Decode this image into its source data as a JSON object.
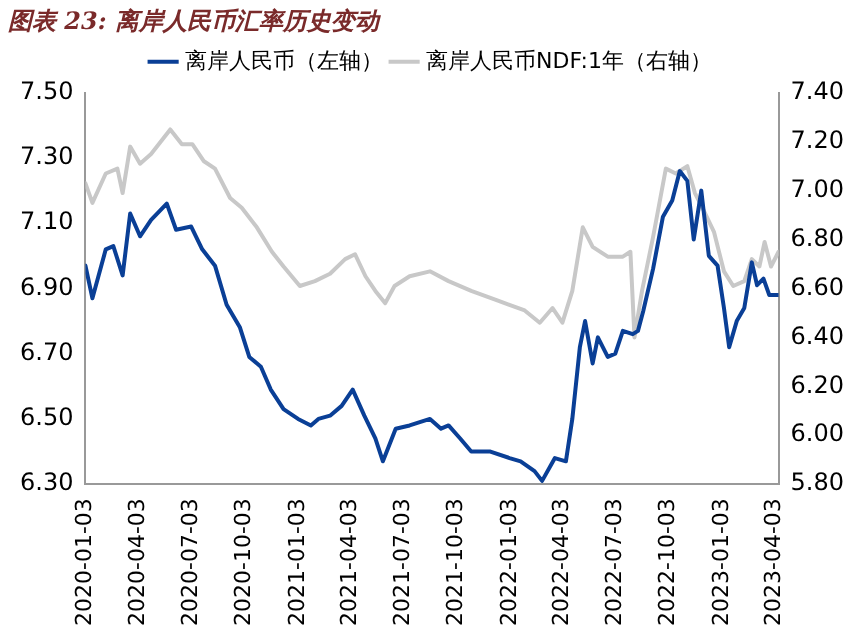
{
  "chart_data": {
    "type": "line",
    "title": "图表 23: 离岸人民币汇率历史变动",
    "legend": "top",
    "grid": false,
    "marker": "none",
    "line_style": "solid",
    "xlim": [
      "2020-01-03",
      "2023-04-10"
    ],
    "xticks": [
      "2020-01-03",
      "2020-04-03",
      "2020-07-03",
      "2020-10-03",
      "2021-01-03",
      "2021-04-03",
      "2021-07-03",
      "2021-10-03",
      "2022-01-03",
      "2022-04-03",
      "2022-07-03",
      "2022-10-03",
      "2023-01-03",
      "2023-04-03"
    ],
    "ylim": [
      6.3,
      7.5
    ],
    "yticks": [
      {
        "value": 6.3,
        "label": "6.30"
      },
      {
        "value": 6.5,
        "label": "6.50"
      },
      {
        "value": 6.7,
        "label": "6.70"
      },
      {
        "value": 6.9,
        "label": "6.90"
      },
      {
        "value": 7.1,
        "label": "7.10"
      },
      {
        "value": 7.3,
        "label": "7.30"
      },
      {
        "value": 7.5,
        "label": "7.50"
      }
    ],
    "y2lim": [
      5.8,
      7.4
    ],
    "y2ticks": [
      {
        "value": 5.8,
        "label": "5.80"
      },
      {
        "value": 6.0,
        "label": "6.00"
      },
      {
        "value": 6.2,
        "label": "6.20"
      },
      {
        "value": 6.4,
        "label": "6.40"
      },
      {
        "value": 6.6,
        "label": "6.60"
      },
      {
        "value": 6.8,
        "label": "6.80"
      },
      {
        "value": 7.0,
        "label": "7.00"
      },
      {
        "value": 7.2,
        "label": "7.20"
      },
      {
        "value": 7.4,
        "label": "7.40"
      }
    ],
    "series": [
      {
        "name": "离岸人民币（左轴）",
        "color": "#0a3f96",
        "axis": "y",
        "x": [
          "2020-01-03",
          "2020-01-15",
          "2020-02-07",
          "2020-02-20",
          "2020-03-07",
          "2020-03-20",
          "2020-04-06",
          "2020-04-25",
          "2020-05-22",
          "2020-06-07",
          "2020-07-03",
          "2020-07-22",
          "2020-08-13",
          "2020-09-02",
          "2020-09-25",
          "2020-10-11",
          "2020-10-31",
          "2020-11-17",
          "2020-12-09",
          "2021-01-03",
          "2021-01-25",
          "2021-02-07",
          "2021-02-27",
          "2021-03-19",
          "2021-04-07",
          "2021-04-27",
          "2021-05-16",
          "2021-05-29",
          "2021-06-20",
          "2021-07-14",
          "2021-08-18",
          "2021-09-06",
          "2021-09-19",
          "2021-10-09",
          "2021-10-28",
          "2021-11-30",
          "2022-01-02",
          "2022-01-21",
          "2022-02-14",
          "2022-02-27",
          "2022-03-21",
          "2022-04-09",
          "2022-04-20",
          "2022-05-03",
          "2022-05-12",
          "2022-05-25",
          "2022-06-03",
          "2022-06-20",
          "2022-07-03",
          "2022-07-16",
          "2022-08-02",
          "2022-08-11",
          "2022-08-20",
          "2022-09-06",
          "2022-09-23",
          "2022-10-09",
          "2022-10-22",
          "2022-11-04",
          "2022-11-15",
          "2022-11-28",
          "2022-12-11",
          "2022-12-26",
          "2023-01-06",
          "2023-01-15",
          "2023-01-28",
          "2023-02-10",
          "2023-02-23",
          "2023-03-04",
          "2023-03-15",
          "2023-03-25",
          "2023-04-10"
        ],
        "values": [
          6.97,
          6.87,
          7.02,
          7.03,
          6.94,
          7.13,
          7.06,
          7.11,
          7.16,
          7.08,
          7.09,
          7.02,
          6.97,
          6.85,
          6.78,
          6.69,
          6.66,
          6.59,
          6.53,
          6.5,
          6.48,
          6.5,
          6.51,
          6.54,
          6.59,
          6.51,
          6.44,
          6.37,
          6.47,
          6.48,
          6.5,
          6.47,
          6.48,
          6.44,
          6.4,
          6.4,
          6.38,
          6.37,
          6.34,
          6.31,
          6.38,
          6.37,
          6.5,
          6.72,
          6.8,
          6.67,
          6.75,
          6.69,
          6.7,
          6.77,
          6.76,
          6.77,
          6.83,
          6.96,
          7.12,
          7.17,
          7.26,
          7.23,
          7.05,
          7.2,
          7.0,
          6.97,
          6.84,
          6.72,
          6.8,
          6.84,
          6.98,
          6.91,
          6.93,
          6.88,
          6.88
        ]
      },
      {
        "name": "离岸人民币NDF:1年（右轴）",
        "color": "#c8c8c8",
        "axis": "y2",
        "x": [
          "2020-01-03",
          "2020-01-15",
          "2020-02-07",
          "2020-02-27",
          "2020-03-07",
          "2020-03-20",
          "2020-04-06",
          "2020-04-25",
          "2020-05-28",
          "2020-06-17",
          "2020-07-05",
          "2020-07-25",
          "2020-08-13",
          "2020-09-08",
          "2020-09-28",
          "2020-10-24",
          "2020-11-19",
          "2020-12-09",
          "2021-01-06",
          "2021-02-01",
          "2021-02-27",
          "2021-03-25",
          "2021-04-11",
          "2021-04-29",
          "2021-05-16",
          "2021-06-02",
          "2021-06-18",
          "2021-07-14",
          "2021-08-18",
          "2021-09-19",
          "2021-10-28",
          "2021-12-13",
          "2022-01-28",
          "2022-02-23",
          "2022-03-17",
          "2022-04-03",
          "2022-04-20",
          "2022-05-08",
          "2022-05-25",
          "2022-06-20",
          "2022-07-16",
          "2022-07-29",
          "2022-08-05",
          "2022-08-18",
          "2022-09-06",
          "2022-09-28",
          "2022-10-15",
          "2022-11-04",
          "2022-11-17",
          "2022-11-30",
          "2022-12-20",
          "2023-01-06",
          "2023-01-22",
          "2023-02-10",
          "2023-02-23",
          "2023-03-08",
          "2023-03-17",
          "2023-03-28",
          "2023-04-10"
        ],
        "values": [
          7.03,
          6.95,
          7.07,
          7.09,
          6.99,
          7.18,
          7.11,
          7.15,
          7.25,
          7.19,
          7.19,
          7.12,
          7.09,
          6.97,
          6.93,
          6.85,
          6.75,
          6.69,
          6.61,
          6.63,
          6.66,
          6.72,
          6.74,
          6.65,
          6.59,
          6.54,
          6.61,
          6.65,
          6.67,
          6.63,
          6.59,
          6.55,
          6.51,
          6.46,
          6.52,
          6.46,
          6.59,
          6.85,
          6.77,
          6.73,
          6.73,
          6.75,
          6.4,
          6.59,
          6.81,
          7.09,
          7.07,
          7.1,
          6.99,
          6.93,
          6.83,
          6.67,
          6.61,
          6.63,
          6.72,
          6.69,
          6.79,
          6.69,
          6.75
        ]
      }
    ]
  }
}
